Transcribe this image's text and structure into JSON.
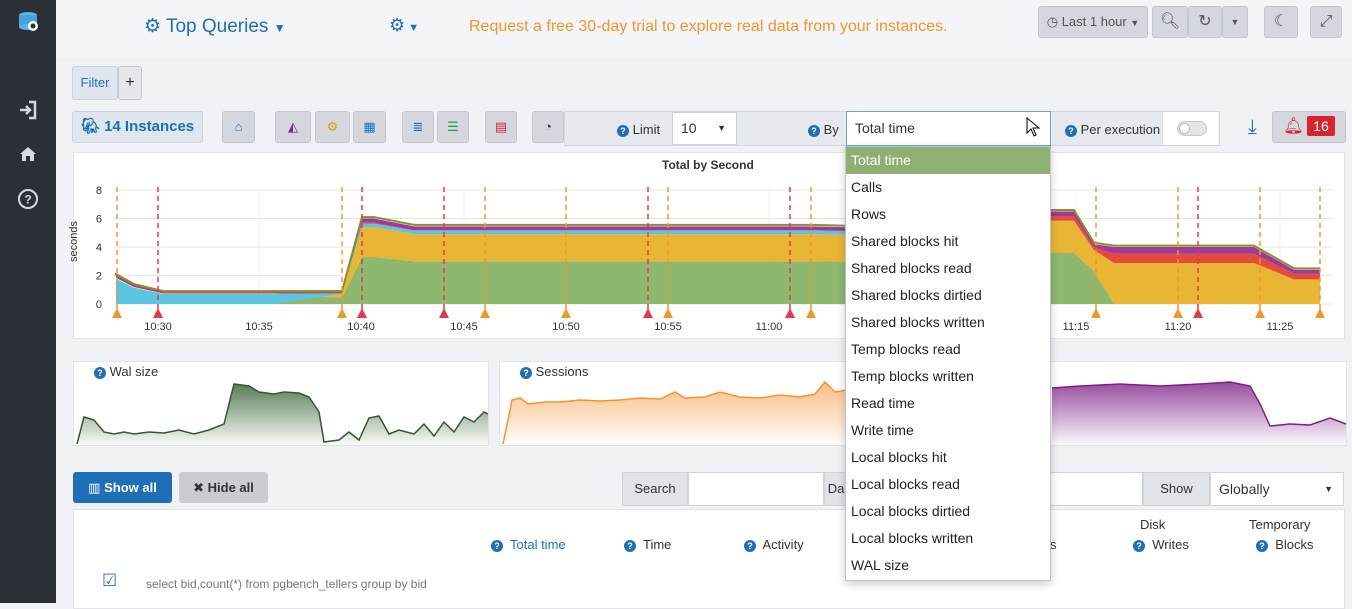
{
  "header": {
    "title": "Top Queries",
    "trial_message": "Request a free 30-day trial to explore real data from your instances.",
    "time_range": "Last 1 hour"
  },
  "filter": {
    "label": "Filter",
    "add": "+"
  },
  "toolbar": {
    "instances": "14 Instances",
    "limit_label": "Limit",
    "limit_value": "10",
    "by_label": "By",
    "by_value": "Total time",
    "per_execution": "Per execution",
    "alerts": "16"
  },
  "chart_data": {
    "type": "area",
    "title": "Total by Second",
    "ylabel": "seconds",
    "yticks": [
      "8",
      "6",
      "4",
      "2",
      "0"
    ],
    "ylim": [
      0,
      8
    ],
    "xticks": [
      "10:30",
      "10:35",
      "10:40",
      "10:45",
      "10:50",
      "10:55",
      "11:00",
      "11:15",
      "11:20",
      "11:25"
    ]
  },
  "mini": {
    "wal": "Wal size",
    "sessions": "Sessions"
  },
  "buttons": {
    "show_all": "Show all",
    "hide_all": "Hide all"
  },
  "search": {
    "label": "Search",
    "partial": "Da",
    "show_label": "Show",
    "show_value": "Globally"
  },
  "table": {
    "col_total_time": "Total time",
    "col_time": "Time",
    "col_activity": "Activity",
    "col_s": "s",
    "disk_header": "Disk",
    "disk_writes": "Writes",
    "temp_header": "Temporary",
    "temp_blocks": "Blocks",
    "row1": "select bid,count(*) from pgbench_tellers group by bid"
  },
  "dropdown": {
    "options": [
      "Total time",
      "Calls",
      "Rows",
      "Shared blocks hit",
      "Shared blocks read",
      "Shared blocks dirtied",
      "Shared blocks written",
      "Temp blocks read",
      "Temp blocks written",
      "Read time",
      "Write time",
      "Local blocks hit",
      "Local blocks read",
      "Local blocks dirtied",
      "Local blocks written",
      "WAL size"
    ]
  },
  "colors": {
    "accent": "#1e6fb8",
    "orange": "#f0962a",
    "selected": "#8eb071",
    "alert": "#d9242f"
  }
}
